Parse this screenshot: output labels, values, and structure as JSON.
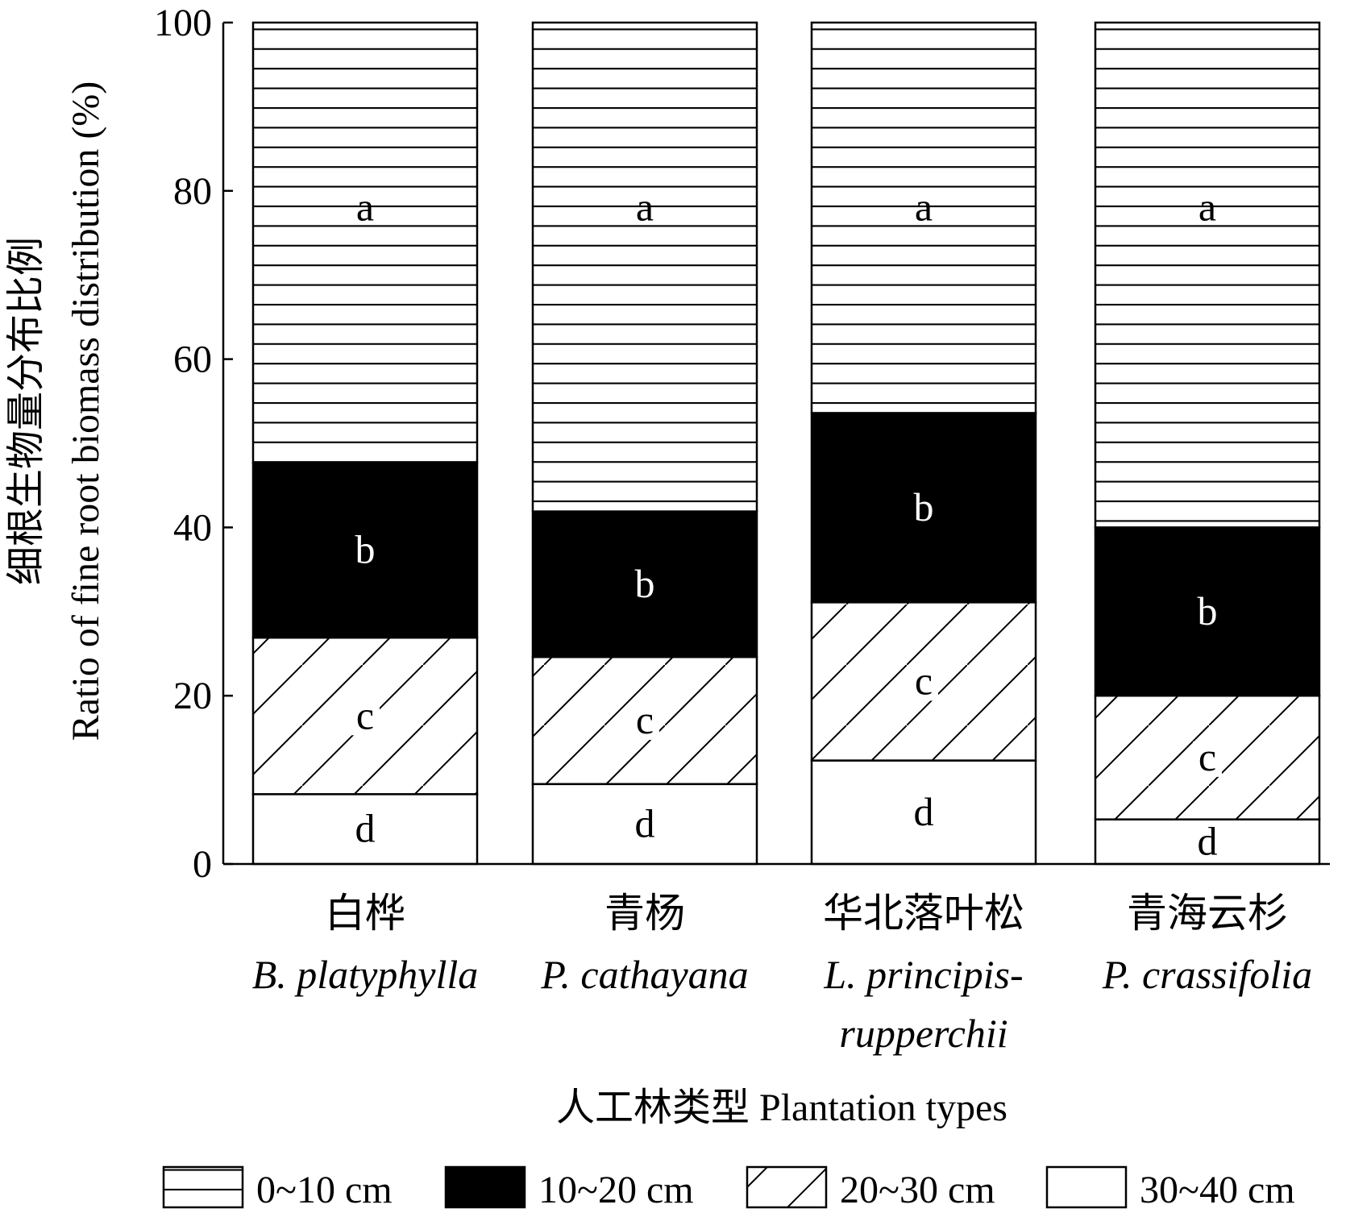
{
  "chart_data": {
    "type": "bar",
    "stacked": true,
    "ylabel_cn": "细根生物量分布比例",
    "ylabel": "Ratio of fine root biomass distribution (%)",
    "xlabel_cn": "人工林类型",
    "xlabel": "Plantation types",
    "ylim": [
      0,
      100
    ],
    "yticks": [
      "0",
      "20",
      "40",
      "60",
      "80",
      "100"
    ],
    "categories": [
      {
        "cn": "白桦",
        "latin": [
          "B. platyphylla"
        ]
      },
      {
        "cn": "青杨",
        "latin": [
          "P. cathayana"
        ]
      },
      {
        "cn": "华北落叶松",
        "latin": [
          "L. principis-",
          "rupperchii"
        ]
      },
      {
        "cn": "青海云杉",
        "latin": [
          "P. crassifolia"
        ]
      }
    ],
    "series": [
      {
        "name": "30~40 cm",
        "pattern": "blank",
        "values": [
          8.3,
          9.5,
          12.3,
          5.3
        ],
        "letters": [
          "d",
          "d",
          "d",
          "d"
        ]
      },
      {
        "name": "20~30 cm",
        "pattern": "diagonal",
        "values": [
          18.6,
          15.1,
          18.8,
          14.7
        ],
        "letters": [
          "c",
          "c",
          "c",
          "c"
        ]
      },
      {
        "name": "10~20 cm",
        "pattern": "solid",
        "values": [
          20.8,
          17.3,
          22.5,
          20.0
        ],
        "letters": [
          "b",
          "b",
          "b",
          "b"
        ]
      },
      {
        "name": "0~10 cm",
        "pattern": "horizontal",
        "values": [
          52.3,
          58.1,
          46.4,
          60.0
        ],
        "letters": [
          "a",
          "a",
          "a",
          "a"
        ]
      }
    ],
    "legend_order": [
      3,
      2,
      1,
      0
    ],
    "legend_position": "bottom",
    "grid": false,
    "colors": {
      "ink": "#000000",
      "paper": "#ffffff"
    }
  }
}
